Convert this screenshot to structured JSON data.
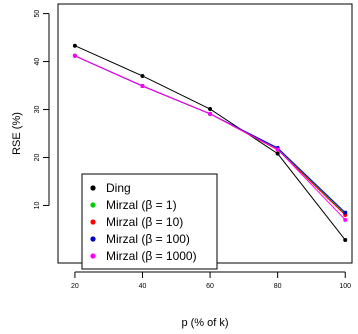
{
  "chart_data": {
    "type": "line",
    "xlabel": "p (% of k)",
    "ylabel": "RSE (%)",
    "x": [
      20,
      40,
      60,
      80,
      100
    ],
    "xlim": [
      15,
      102
    ],
    "ylim": [
      -2,
      52
    ],
    "xticks": [
      20,
      40,
      60,
      80,
      100
    ],
    "yticks": [
      10,
      20,
      30,
      40,
      50
    ],
    "grid": false,
    "legend_position": "bottom-left",
    "series": [
      {
        "name": "Ding",
        "color": "#000000",
        "values": [
          43.3,
          37.0,
          30.1,
          20.8,
          2.8
        ]
      },
      {
        "name": "Mirzal (β = 1)",
        "color": "#00cc00",
        "values": [
          41.2,
          34.9,
          29.1,
          21.9,
          8.2
        ]
      },
      {
        "name": "Mirzal (β = 10)",
        "color": "#ff0000",
        "values": [
          41.2,
          34.9,
          29.1,
          21.6,
          8.0
        ]
      },
      {
        "name": "Mirzal (β = 100)",
        "color": "#0000cc",
        "values": [
          41.2,
          34.9,
          29.1,
          22.0,
          8.5
        ]
      },
      {
        "name": "Mirzal (β = 1000)",
        "color": "#ff00ff",
        "values": [
          41.2,
          34.9,
          29.1,
          21.7,
          7.0
        ]
      }
    ]
  }
}
